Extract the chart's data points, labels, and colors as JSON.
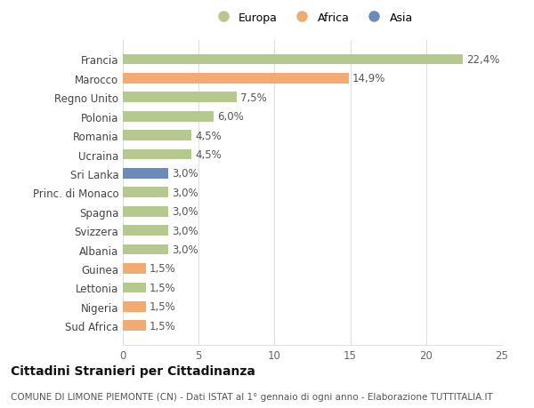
{
  "categories": [
    "Francia",
    "Marocco",
    "Regno Unito",
    "Polonia",
    "Romania",
    "Ucraina",
    "Sri Lanka",
    "Princ. di Monaco",
    "Spagna",
    "Svizzera",
    "Albania",
    "Guinea",
    "Lettonia",
    "Nigeria",
    "Sud Africa"
  ],
  "values": [
    22.4,
    14.9,
    7.5,
    6.0,
    4.5,
    4.5,
    3.0,
    3.0,
    3.0,
    3.0,
    3.0,
    1.5,
    1.5,
    1.5,
    1.5
  ],
  "colors": [
    "#b5c98e",
    "#f0aa72",
    "#b5c98e",
    "#b5c98e",
    "#b5c98e",
    "#b5c98e",
    "#6b8cba",
    "#b5c98e",
    "#b5c98e",
    "#b5c98e",
    "#b5c98e",
    "#f0aa72",
    "#b5c98e",
    "#f0aa72",
    "#f0aa72"
  ],
  "labels": [
    "22,4%",
    "14,9%",
    "7,5%",
    "6,0%",
    "4,5%",
    "4,5%",
    "3,0%",
    "3,0%",
    "3,0%",
    "3,0%",
    "3,0%",
    "1,5%",
    "1,5%",
    "1,5%",
    "1,5%"
  ],
  "legend": [
    {
      "label": "Europa",
      "color": "#b5c98e"
    },
    {
      "label": "Africa",
      "color": "#f0aa72"
    },
    {
      "label": "Asia",
      "color": "#6b8cba"
    }
  ],
  "title": "Cittadini Stranieri per Cittadinanza",
  "subtitle": "COMUNE DI LIMONE PIEMONTE (CN) - Dati ISTAT al 1° gennaio di ogni anno - Elaborazione TUTTITALIA.IT",
  "xlim": [
    0,
    25
  ],
  "xticks": [
    0,
    5,
    10,
    15,
    20,
    25
  ],
  "background_color": "#ffffff",
  "grid_color": "#e0e0e0",
  "bar_height": 0.55,
  "title_fontsize": 10,
  "subtitle_fontsize": 7.5,
  "tick_fontsize": 8.5,
  "label_fontsize": 8.5
}
